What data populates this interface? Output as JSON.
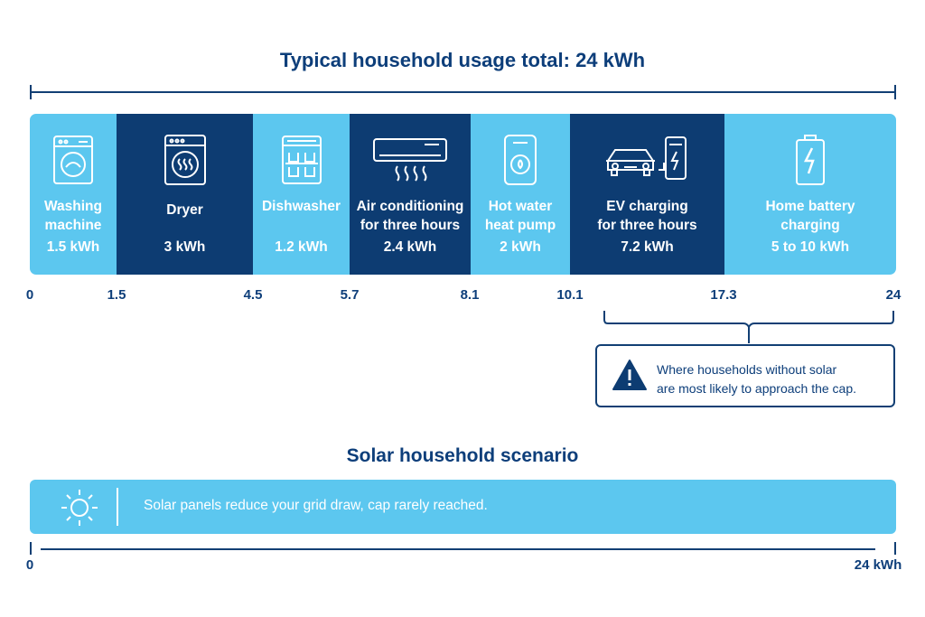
{
  "title": "Typical household usage total: 24 kWh",
  "colors": {
    "light": "#5cc7ef",
    "dark": "#0d3c72",
    "ink": "#0d3e7a"
  },
  "segments": [
    {
      "name_line1": "Washing",
      "name_line2": "machine",
      "value": "1.5 kWh",
      "icon": "washing-machine-icon",
      "tone": "light"
    },
    {
      "name_line1": "Dryer",
      "name_line2": "",
      "value": "3 kWh",
      "icon": "dryer-icon",
      "tone": "dark"
    },
    {
      "name_line1": "Dishwasher",
      "name_line2": "",
      "value": "1.2 kWh",
      "icon": "dishwasher-icon",
      "tone": "light"
    },
    {
      "name_line1": "Air conditioning",
      "name_line2": "for three hours",
      "value": "2.4 kWh",
      "icon": "air-conditioner-icon",
      "tone": "dark"
    },
    {
      "name_line1": "Hot water",
      "name_line2": "heat pump",
      "value": "2 kWh",
      "icon": "heat-pump-icon",
      "tone": "light"
    },
    {
      "name_line1": "EV charging",
      "name_line2": "for three hours",
      "value": "7.2 kWh",
      "icon": "ev-charger-icon",
      "tone": "dark"
    },
    {
      "name_line1": "Home battery",
      "name_line2": "charging",
      "value": "5 to 10 kWh",
      "icon": "battery-icon",
      "tone": "light"
    }
  ],
  "ticks": [
    "0",
    "1.5",
    "4.5",
    "5.7",
    "8.1",
    "10.1",
    "17.3",
    "24"
  ],
  "callout": {
    "line1": "Where households without solar",
    "line2": "are most likely to approach the cap.",
    "icon": "warning-icon"
  },
  "solar": {
    "title": "Solar household scenario",
    "text": "Solar panels reduce your grid draw, cap rarely reached.",
    "icon": "sun-icon",
    "axis_start": "0",
    "axis_end": "24 kWh"
  }
}
